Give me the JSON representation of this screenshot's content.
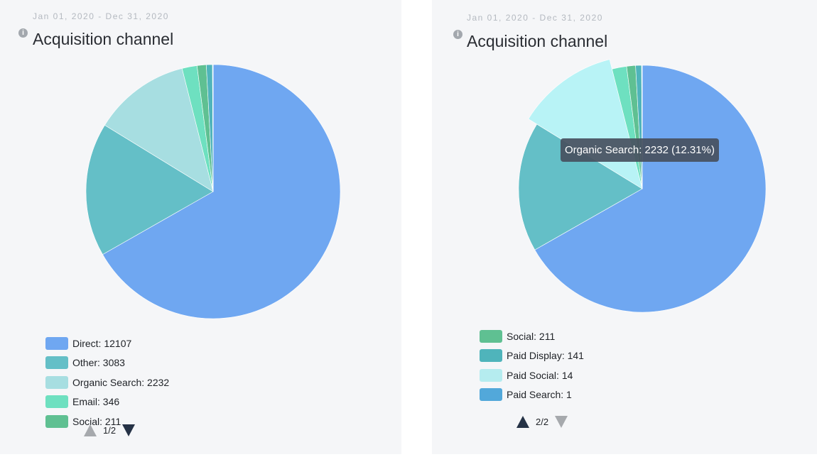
{
  "colors": {
    "direct": "#6fa7f1",
    "other": "#64bfc7",
    "organic_search": "#a7dee1",
    "organic_search_hover": "#b8f3f6",
    "email": "#6ee0c0",
    "social": "#5fc092",
    "paid_display": "#4fb4bb",
    "paid_social": "#b5ecef",
    "paid_search": "#52a8da"
  },
  "chart_data": [
    {
      "type": "pie",
      "date_range": "Jan 01, 2020 - Dec 31, 2020",
      "title": "Acquisition channel",
      "slices": [
        {
          "name": "Direct",
          "value": 12107,
          "color": "#6fa7f1"
        },
        {
          "name": "Other",
          "value": 3083,
          "color": "#64bfc7"
        },
        {
          "name": "Organic Search",
          "value": 2232,
          "color": "#a7dee1"
        },
        {
          "name": "Email",
          "value": 346,
          "color": "#6ee0c0"
        },
        {
          "name": "Social",
          "value": 211,
          "color": "#5fc092"
        },
        {
          "name": "Paid Display",
          "value": 141,
          "color": "#4fb4bb"
        },
        {
          "name": "Paid Social",
          "value": 14,
          "color": "#b5ecef"
        },
        {
          "name": "Paid Search",
          "value": 1,
          "color": "#52a8da"
        }
      ],
      "legend": {
        "placement": "bottom-left",
        "items": [
          {
            "label": "Direct: 12107",
            "color": "#6fa7f1"
          },
          {
            "label": "Other: 3083",
            "color": "#64bfc7"
          },
          {
            "label": "Organic Search: 2232",
            "color": "#a7dee1"
          },
          {
            "label": "Email: 346",
            "color": "#6ee0c0"
          },
          {
            "label": "Social: 211",
            "color": "#5fc092"
          }
        ]
      },
      "pager": {
        "label": "1/2"
      }
    },
    {
      "type": "pie",
      "date_range": "Jan 01, 2020 - Dec 31, 2020",
      "title": "Acquisition channel",
      "slices": [
        {
          "name": "Direct",
          "value": 12107,
          "color": "#6fa7f1"
        },
        {
          "name": "Other",
          "value": 3083,
          "color": "#64bfc7"
        },
        {
          "name": "Organic Search",
          "value": 2232,
          "color": "#b8f3f6"
        },
        {
          "name": "Email",
          "value": 346,
          "color": "#6ee0c0"
        },
        {
          "name": "Social",
          "value": 211,
          "color": "#5fc092"
        },
        {
          "name": "Paid Display",
          "value": 141,
          "color": "#4fb4bb"
        },
        {
          "name": "Paid Social",
          "value": 14,
          "color": "#b5ecef"
        },
        {
          "name": "Paid Search",
          "value": 1,
          "color": "#52a8da"
        }
      ],
      "highlighted": "Organic Search",
      "tooltip": "Organic Search: 2232 (12.31%)",
      "legend": {
        "placement": "bottom-left",
        "items": [
          {
            "label": "Social: 211",
            "color": "#5fc092"
          },
          {
            "label": "Paid Display: 141",
            "color": "#4fb4bb"
          },
          {
            "label": "Paid Social: 14",
            "color": "#b5ecef"
          },
          {
            "label": "Paid Search: 1",
            "color": "#52a8da"
          }
        ]
      },
      "pager": {
        "label": "2/2"
      }
    }
  ]
}
